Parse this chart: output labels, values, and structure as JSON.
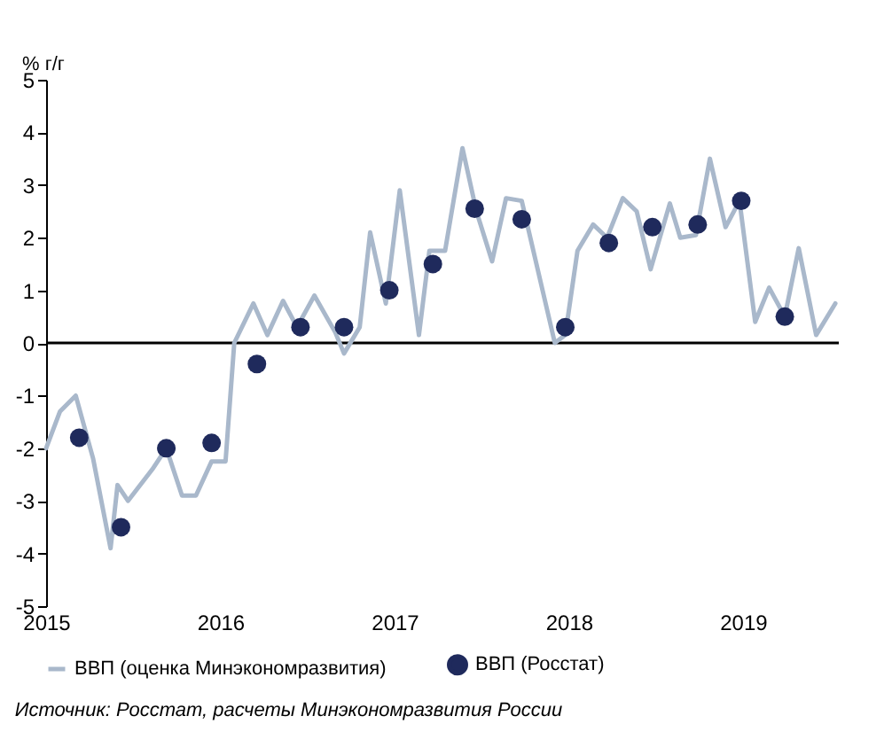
{
  "chart_data": {
    "type": "line",
    "ylabel": "% г/г",
    "xlim": [
      2015,
      2019.55
    ],
    "ylim": [
      -5,
      5
    ],
    "xticks": [
      2015,
      2016,
      2017,
      2018,
      2019
    ],
    "yticks": [
      -5,
      -4,
      -3,
      -2,
      -1,
      0,
      1,
      2,
      3,
      4,
      5
    ],
    "legend": "bottom",
    "grid": false,
    "ref_lines": [
      {
        "axis": "y",
        "value": 0,
        "color": "#000000"
      }
    ],
    "annotations": [
      "Источник: Росстат, расчеты Минэкономразвития России"
    ],
    "series": [
      {
        "name": "ВВП (оценка Минэкономразвития)",
        "type": "line",
        "color": "#a9b8cb",
        "x": [
          2015.0,
          2015.08,
          2015.17,
          2015.27,
          2015.37,
          2015.41,
          2015.47,
          2015.61,
          2015.69,
          2015.78,
          2015.86,
          2015.95,
          2016.03,
          2016.08,
          2016.19,
          2016.27,
          2016.36,
          2016.44,
          2016.54,
          2016.66,
          2016.71,
          2016.8,
          2016.86,
          2016.95,
          2017.03,
          2017.14,
          2017.2,
          2017.29,
          2017.39,
          2017.47,
          2017.56,
          2017.64,
          2017.73,
          2017.92,
          2017.98,
          2018.05,
          2018.14,
          2018.22,
          2018.31,
          2018.39,
          2018.47,
          2018.58,
          2018.64,
          2018.73,
          2018.81,
          2018.9,
          2018.98,
          2019.07,
          2019.15,
          2019.24,
          2019.32,
          2019.42,
          2019.53
        ],
        "values": [
          -2.0,
          -1.3,
          -1.0,
          -2.2,
          -3.9,
          -2.7,
          -3.0,
          -2.4,
          -2.0,
          -2.9,
          -2.9,
          -2.25,
          -2.25,
          0,
          0.75,
          0.15,
          0.8,
          0.3,
          0.9,
          0.2,
          -0.2,
          0.3,
          2.1,
          0.75,
          2.9,
          0.15,
          1.75,
          1.75,
          3.7,
          2.5,
          1.55,
          2.75,
          2.7,
          0,
          0.15,
          1.75,
          2.25,
          2.0,
          2.75,
          2.5,
          1.4,
          2.65,
          2.0,
          2.05,
          3.5,
          2.2,
          2.7,
          0.4,
          1.05,
          0.5,
          1.8,
          0.15,
          0.75
        ]
      },
      {
        "name": "ВВП (Росстат)",
        "type": "scatter",
        "marker": "circle",
        "color": "#1f2a5c",
        "x": [
          2015.19,
          2015.43,
          2015.69,
          2015.95,
          2016.21,
          2016.46,
          2016.71,
          2016.97,
          2017.22,
          2017.46,
          2017.73,
          2017.98,
          2018.23,
          2018.48,
          2018.74,
          2018.99,
          2019.24
        ],
        "values": [
          -1.8,
          -3.5,
          -2.0,
          -1.9,
          -0.4,
          0.3,
          0.3,
          1.0,
          1.5,
          2.55,
          2.35,
          0.3,
          1.9,
          2.2,
          2.25,
          2.7,
          0.5
        ]
      }
    ]
  }
}
